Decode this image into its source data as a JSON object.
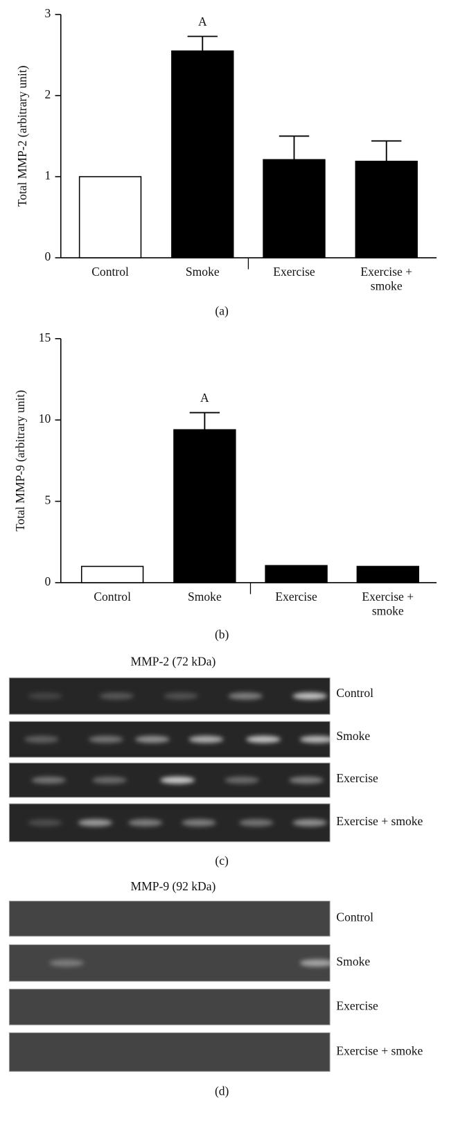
{
  "chart_data": [
    {
      "type": "bar",
      "y_label": "Total MMP-2 (arbitrary unit)",
      "categories": [
        "Control",
        "Smoke",
        "Exercise",
        "Exercise + smoke"
      ],
      "values": [
        1.0,
        2.55,
        1.21,
        1.19
      ],
      "errors": [
        0,
        0.18,
        0.29,
        0.25
      ],
      "colors": [
        "#ffffff",
        "#000000",
        "#000000",
        "#000000"
      ],
      "ylim": [
        0,
        3
      ],
      "yticks": [
        0,
        1,
        2,
        3
      ],
      "annotations": [
        {
          "text": "A",
          "category": "Smoke"
        }
      ],
      "panel_label": "(a)"
    },
    {
      "type": "bar",
      "y_label": "Total MMP-9 (arbitrary unit)",
      "categories": [
        "Control",
        "Smoke",
        "Exercise",
        "Exercise + smoke"
      ],
      "values": [
        1.0,
        9.4,
        1.05,
        1.0
      ],
      "errors": [
        0,
        1.05,
        0,
        0
      ],
      "colors": [
        "#ffffff",
        "#000000",
        "#000000",
        "#000000"
      ],
      "ylim": [
        0,
        15
      ],
      "yticks": [
        0,
        5,
        10,
        15
      ],
      "annotations": [
        {
          "text": "A",
          "category": "Smoke"
        }
      ],
      "panel_label": "(b)"
    }
  ],
  "gels": [
    {
      "title": "MMP-2 (72 kDa)",
      "rows": [
        "Control",
        "Smoke",
        "Exercise",
        "Exercise + smoke"
      ],
      "panel_label": "(c)"
    },
    {
      "title": "MMP-9 (92 kDa)",
      "rows": [
        "Control",
        "Smoke",
        "Exercise",
        "Exercise + smoke"
      ],
      "panel_label": "(d)"
    }
  ]
}
